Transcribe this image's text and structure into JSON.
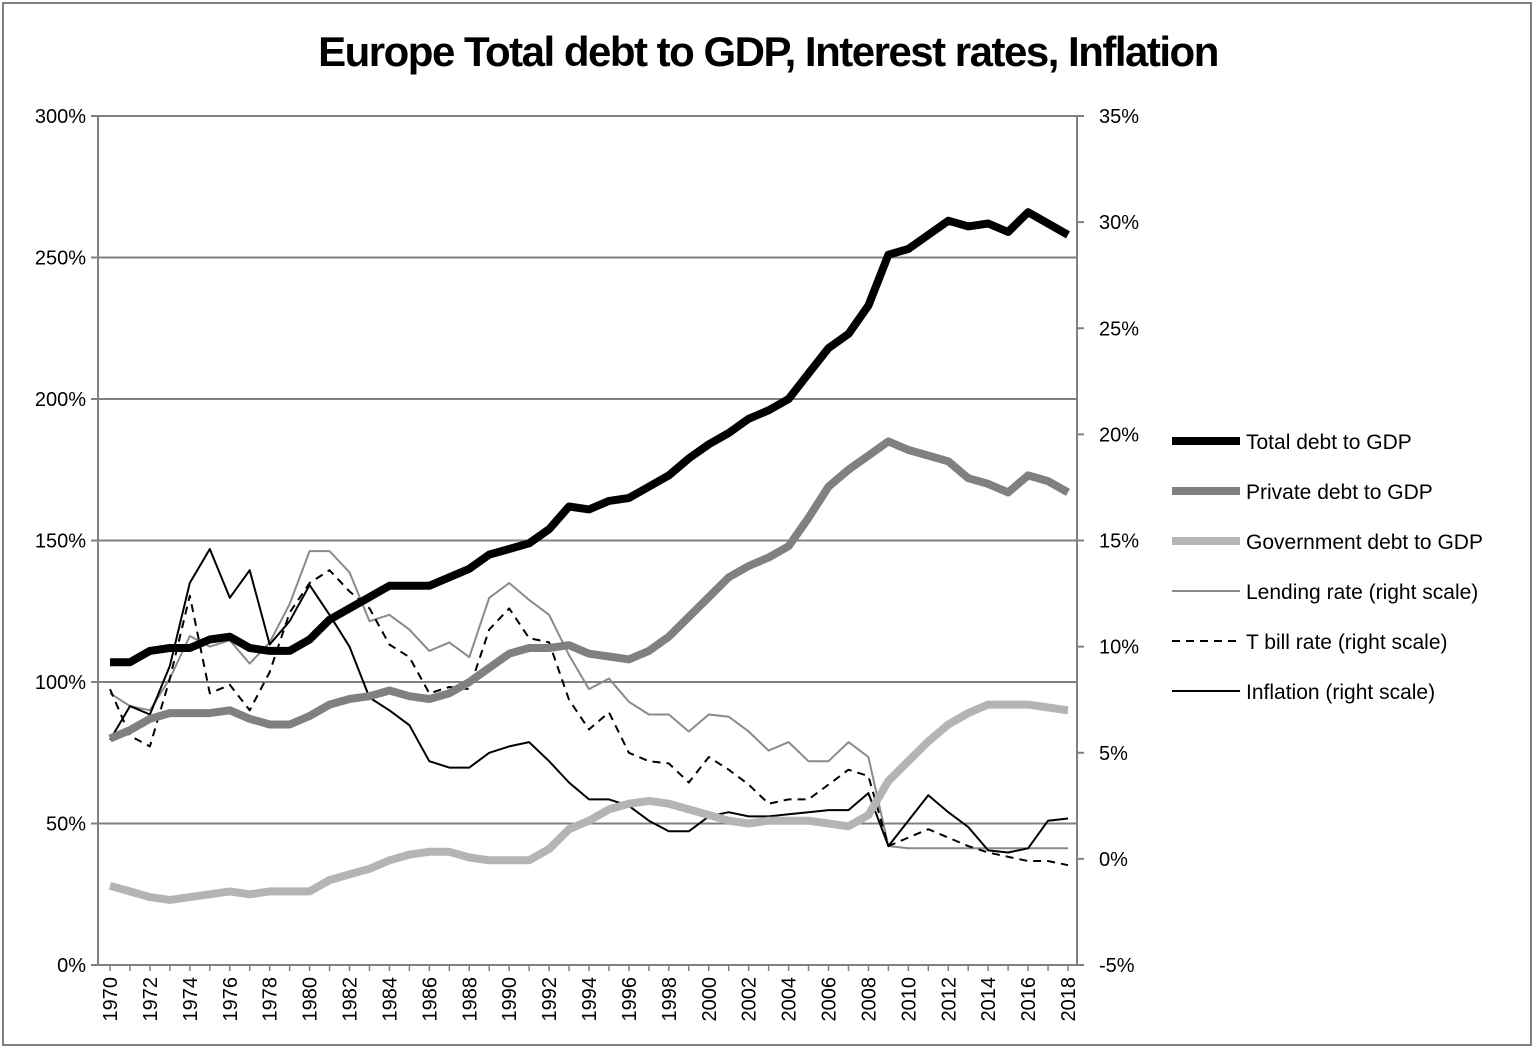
{
  "chart_data": {
    "type": "line",
    "title": "Europe Total debt to GDP, Interest rates, Inflation",
    "xlabel": "",
    "ylabel": "",
    "x": [
      1970,
      1971,
      1972,
      1973,
      1974,
      1975,
      1976,
      1977,
      1978,
      1979,
      1980,
      1981,
      1982,
      1983,
      1984,
      1985,
      1986,
      1987,
      1988,
      1989,
      1990,
      1991,
      1992,
      1993,
      1994,
      1995,
      1996,
      1997,
      1998,
      1999,
      2000,
      2001,
      2002,
      2003,
      2004,
      2005,
      2006,
      2007,
      2008,
      2009,
      2010,
      2011,
      2012,
      2013,
      2014,
      2015,
      2016,
      2017,
      2018
    ],
    "x_tick_labels": [
      "1970",
      "1972",
      "1974",
      "1976",
      "1978",
      "1980",
      "1982",
      "1984",
      "1986",
      "1988",
      "1990",
      "1992",
      "1994",
      "1996",
      "1998",
      "2000",
      "2002",
      "2004",
      "2006",
      "2008",
      "2010",
      "2012",
      "2014",
      "2016",
      "2018"
    ],
    "y_left": {
      "ylim": [
        0,
        300
      ],
      "ticks": [
        "0%",
        "50%",
        "100%",
        "150%",
        "200%",
        "250%",
        "300%"
      ]
    },
    "y_right": {
      "ylim": [
        -5,
        35
      ],
      "ticks": [
        "-5%",
        "0%",
        "5%",
        "10%",
        "15%",
        "20%",
        "25%",
        "30%",
        "35%"
      ]
    },
    "grid": true,
    "legend_position": "right",
    "series": [
      {
        "name": "Total debt to GDP",
        "axis": "left",
        "color": "#000000",
        "style": "thick",
        "values": [
          107,
          107,
          111,
          112,
          112,
          115,
          116,
          112,
          111,
          111,
          115,
          122,
          126,
          130,
          134,
          134,
          134,
          137,
          140,
          145,
          147,
          149,
          154,
          162,
          161,
          164,
          165,
          169,
          173,
          179,
          184,
          188,
          193,
          196,
          200,
          209,
          218,
          223,
          233,
          251,
          253,
          258,
          263,
          261,
          262,
          259,
          266,
          262,
          258
        ]
      },
      {
        "name": "Private debt to GDP",
        "axis": "left",
        "color": "#808080",
        "style": "thick",
        "values": [
          80,
          83,
          87,
          89,
          89,
          89,
          90,
          87,
          85,
          85,
          88,
          92,
          94,
          95,
          97,
          95,
          94,
          96,
          100,
          105,
          110,
          112,
          112,
          113,
          110,
          109,
          108,
          111,
          116,
          123,
          130,
          137,
          141,
          144,
          148,
          158,
          169,
          175,
          180,
          185,
          182,
          180,
          178,
          172,
          170,
          167,
          173,
          171,
          167
        ]
      },
      {
        "name": "Government debt to GDP",
        "axis": "left",
        "color": "#b4b4b4",
        "style": "thick",
        "values": [
          28,
          26,
          24,
          23,
          24,
          25,
          26,
          25,
          26,
          26,
          26,
          30,
          32,
          34,
          37,
          39,
          40,
          40,
          38,
          37,
          37,
          37,
          41,
          48,
          51,
          55,
          57,
          58,
          57,
          55,
          53,
          51,
          50,
          51,
          51,
          51,
          50,
          49,
          53,
          65,
          72,
          79,
          85,
          89,
          92,
          92,
          92,
          91,
          90
        ]
      },
      {
        "name": "Lending rate (right scale)",
        "axis": "right",
        "color": "#8a8a8a",
        "style": "thin",
        "values": [
          7.8,
          7.2,
          7.0,
          8.5,
          10.5,
          10.0,
          10.3,
          9.2,
          10.2,
          12.0,
          14.5,
          14.5,
          13.5,
          11.2,
          11.5,
          10.8,
          9.8,
          10.2,
          9.5,
          12.3,
          13.0,
          12.2,
          11.5,
          9.6,
          8.0,
          8.5,
          7.4,
          6.8,
          6.8,
          6.0,
          6.8,
          6.7,
          6.0,
          5.1,
          5.5,
          4.6,
          4.6,
          5.5,
          4.8,
          0.6,
          0.5,
          0.5,
          0.5,
          0.5,
          0.5,
          0.5,
          0.5,
          0.5,
          0.5
        ]
      },
      {
        "name": "T bill rate (right scale)",
        "axis": "right",
        "color": "#000000",
        "style": "dashed",
        "values": [
          8.0,
          5.8,
          5.3,
          8.5,
          12.4,
          7.8,
          8.2,
          7.0,
          8.8,
          11.6,
          13.0,
          13.6,
          12.6,
          11.8,
          10.1,
          9.5,
          7.8,
          8.1,
          8.0,
          10.8,
          11.8,
          10.4,
          10.2,
          7.5,
          6.1,
          6.9,
          5.0,
          4.6,
          4.5,
          3.6,
          4.8,
          4.2,
          3.5,
          2.6,
          2.8,
          2.8,
          3.5,
          4.2,
          3.9,
          0.6,
          1.0,
          1.4,
          1.0,
          0.6,
          0.3,
          0.1,
          -0.1,
          -0.1,
          -0.3
        ]
      },
      {
        "name": "Inflation (right scale)",
        "axis": "right",
        "color": "#000000",
        "style": "thin",
        "values": [
          5.6,
          7.2,
          6.8,
          9.1,
          13.0,
          14.6,
          12.3,
          13.6,
          10.1,
          11.2,
          12.9,
          11.5,
          10.0,
          7.6,
          7.0,
          6.3,
          4.6,
          4.3,
          4.3,
          5.0,
          5.3,
          5.5,
          4.6,
          3.6,
          2.8,
          2.8,
          2.5,
          1.8,
          1.3,
          1.3,
          2.0,
          2.2,
          2.0,
          2.0,
          2.1,
          2.2,
          2.3,
          2.3,
          3.1,
          0.6,
          1.8,
          3.0,
          2.2,
          1.5,
          0.4,
          0.3,
          0.5,
          1.8,
          1.9
        ]
      }
    ]
  }
}
